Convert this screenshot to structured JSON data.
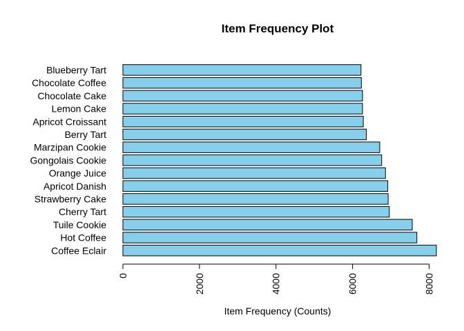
{
  "chart_data": {
    "type": "bar",
    "orientation": "horizontal",
    "title": "Item Frequency Plot",
    "xlabel": "Item Frequency (Counts)",
    "ylabel": "",
    "categories": [
      "Coffee Eclair",
      "Hot Coffee",
      "Tuile Cookie",
      "Cherry Tart",
      "Strawberry Cake",
      "Apricot Danish",
      "Orange Juice",
      "Gongolais Cookie",
      "Marzipan Cookie",
      "Berry Tart",
      "Apricot Croissant",
      "Lemon Cake",
      "Chocolate Cake",
      "Chocolate Coffee",
      "Blueberry Tart"
    ],
    "values": [
      8190,
      7680,
      7560,
      6960,
      6930,
      6920,
      6860,
      6760,
      6710,
      6360,
      6280,
      6260,
      6260,
      6230,
      6220
    ],
    "xlim": [
      0,
      8190
    ],
    "xticks": [
      0,
      2000,
      4000,
      6000,
      8000
    ],
    "xtick_labels": [
      "0",
      "2000",
      "4000",
      "6000",
      "8000"
    ],
    "bar_color": "#87ceeb",
    "bar_border": "#000000",
    "grid": false,
    "legend": "none"
  }
}
